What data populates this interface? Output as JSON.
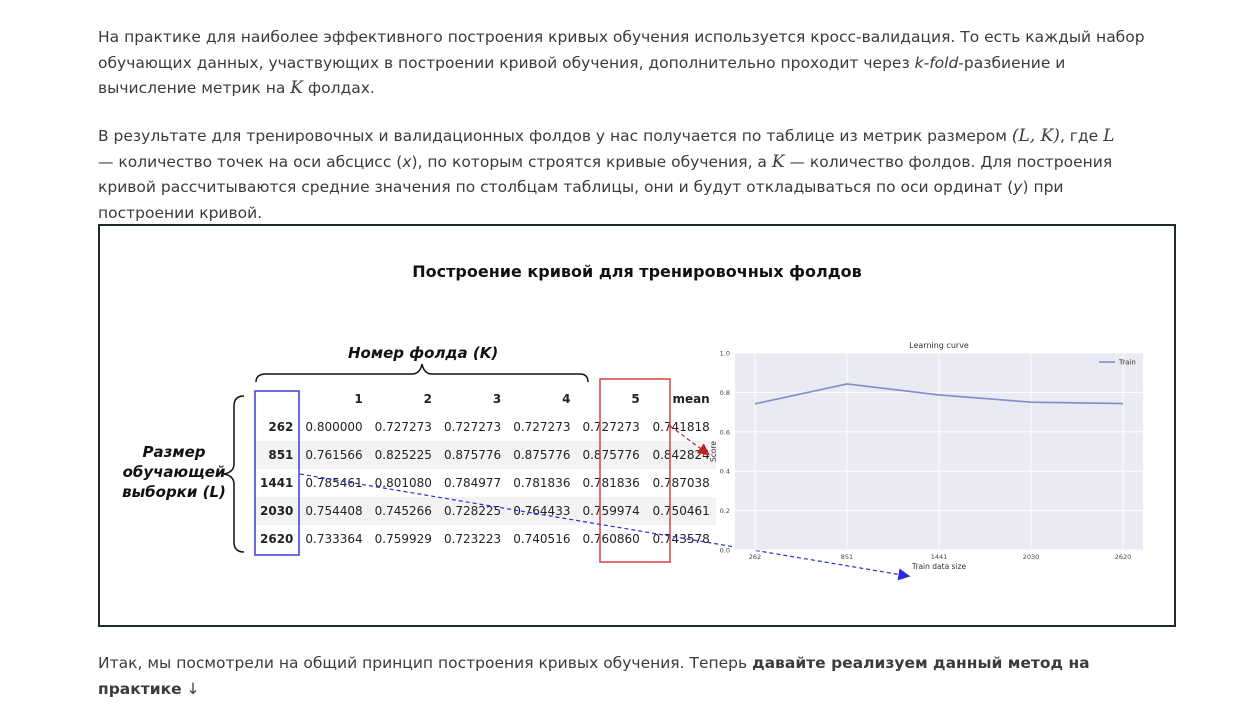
{
  "article": {
    "p1": {
      "a": "На практике для наиболее эффективного построения кривых обучения используется кросс-валидация. То есть каждый набор обучающих данных, участвующих в построении кривой обучения, дополнительно проходит через ",
      "kfold": "k-fold",
      "b": "-разбиение и вычисление метрик на ",
      "K": "K",
      "c": " фолдах."
    },
    "p2": {
      "a": "В результате для тренировочных и валидационных фолдов у нас получается по таблице из метрик размером ",
      "LK": "(L, K)",
      "b": ", где ",
      "L": "L",
      "c": " — количество точек на оси абсцисс (",
      "x": "x",
      "d": "), по которым строятся кривые обучения, а ",
      "K": "K",
      "e": " — количество фолдов. Для построения кривой рассчитываются средние значения по столбцам таблицы, они и будут откладываться по оси ординат (",
      "y": "y",
      "f": ") при построении кривой."
    },
    "p3": {
      "a": "Итак, мы посмотрели на общий принцип построения кривых обучения. Теперь ",
      "bold": "давайте реализуем данный метод на практике",
      "arrow": " ↓"
    }
  },
  "figure": {
    "title": "Построение кривой для тренировочных фолдов",
    "fold_label": "Номер фолда (K)",
    "size_label": "Размер обучающей выборки (L)",
    "table": {
      "headers": [
        "",
        "1",
        "2",
        "3",
        "4",
        "5",
        "mean"
      ],
      "rows": [
        [
          "262",
          "0.800000",
          "0.727273",
          "0.727273",
          "0.727273",
          "0.727273",
          "0.741818"
        ],
        [
          "851",
          "0.761566",
          "0.825225",
          "0.875776",
          "0.875776",
          "0.875776",
          "0.842824"
        ],
        [
          "1441",
          "0.785461",
          "0.801080",
          "0.784977",
          "0.781836",
          "0.781836",
          "0.787038"
        ],
        [
          "2030",
          "0.754408",
          "0.745266",
          "0.728225",
          "0.764433",
          "0.759974",
          "0.750461"
        ],
        [
          "2620",
          "0.733364",
          "0.759929",
          "0.723223",
          "0.740516",
          "0.760860",
          "0.743578"
        ]
      ]
    },
    "colors": {
      "blue_box": "#3b3bdb",
      "red_box": "#d94040",
      "line": "#7f8fcb",
      "plot_bg": "#eaeaf2"
    }
  },
  "chart_data": {
    "type": "line",
    "title": "Learning curve",
    "xlabel": "Train data size",
    "ylabel": "Score",
    "categories": [
      "262",
      "851",
      "1441",
      "2030",
      "2620"
    ],
    "series": [
      {
        "name": "Train",
        "values": [
          0.741818,
          0.842824,
          0.787038,
          0.750461,
          0.743578
        ]
      }
    ],
    "ylim": [
      0.0,
      1.0
    ],
    "yticks": [
      "0.0",
      "0.2",
      "0.4",
      "0.6",
      "0.8",
      "1.0"
    ],
    "grid": true,
    "legend": "top-right"
  }
}
